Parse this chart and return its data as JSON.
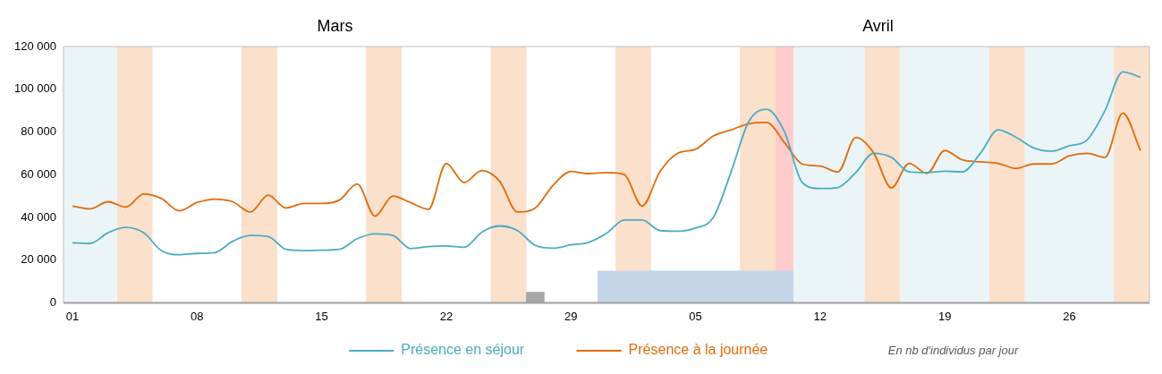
{
  "chart_data": {
    "type": "line",
    "x": [
      "--03-01",
      "--03-02",
      "--03-03",
      "--03-04",
      "--03-05",
      "--03-06",
      "--03-07",
      "--03-08",
      "--03-09",
      "--03-10",
      "--03-11",
      "--03-12",
      "--03-13",
      "--03-14",
      "--03-15",
      "--03-16",
      "--03-17",
      "--03-18",
      "--03-19",
      "--03-20",
      "--03-21",
      "--03-22",
      "--03-23",
      "--03-24",
      "--03-25",
      "--03-26",
      "--03-27",
      "--03-28",
      "--03-29",
      "--03-30",
      "--03-31",
      "--04-01",
      "--04-02",
      "--04-03",
      "--04-04",
      "--04-05",
      "--04-06",
      "--04-07",
      "--04-08",
      "--04-09",
      "--04-10",
      "--04-11",
      "--04-12",
      "--04-13",
      "--04-14",
      "--04-15",
      "--04-16",
      "--04-17",
      "--04-18",
      "--04-19",
      "--04-20",
      "--04-21",
      "--04-22",
      "--04-23",
      "--04-24",
      "--04-25",
      "--04-26",
      "--04-27",
      "--04-28",
      "--04-29",
      "--04-30"
    ],
    "xlim": [
      "--02-28T12:00",
      "--04-30T12:00"
    ],
    "xticks": [
      {
        "value": "--03-01",
        "label": "01"
      },
      {
        "value": "--03-08",
        "label": "08"
      },
      {
        "value": "--03-15",
        "label": "15"
      },
      {
        "value": "--03-22",
        "label": "22"
      },
      {
        "value": "--03-29",
        "label": "29"
      },
      {
        "value": "--04-05",
        "label": "05"
      },
      {
        "value": "--04-12",
        "label": "12"
      },
      {
        "value": "--04-19",
        "label": "19"
      },
      {
        "value": "--04-26",
        "label": "26"
      }
    ],
    "ylim": [
      0,
      120000
    ],
    "yticks": [
      {
        "value": 0,
        "label": "0"
      },
      {
        "value": 20000,
        "label": "20 000"
      },
      {
        "value": 40000,
        "label": "40 000"
      },
      {
        "value": 60000,
        "label": "60 000"
      },
      {
        "value": 80000,
        "label": "80 000"
      },
      {
        "value": 100000,
        "label": "100 000"
      },
      {
        "value": 120000,
        "label": "120 000"
      }
    ],
    "series": [
      {
        "name": "Présence en séjour",
        "color": "#4bacc6",
        "values": [
          28100,
          27800,
          32800,
          35300,
          32800,
          24400,
          22500,
          23100,
          23500,
          28800,
          31500,
          31000,
          25000,
          24400,
          24600,
          25000,
          30000,
          32300,
          31500,
          25400,
          26300,
          26600,
          26000,
          33100,
          36000,
          33800,
          26900,
          25600,
          27100,
          28300,
          32500,
          38800,
          38800,
          33800,
          33500,
          35000,
          40000,
          61300,
          85000,
          90600,
          80000,
          56300,
          53500,
          54000,
          61000,
          70000,
          68100,
          61300,
          61000,
          61600,
          61300,
          70000,
          81000,
          77500,
          72500,
          71000,
          73500,
          76300,
          90000,
          108100,
          105600
        ]
      },
      {
        "name": "Présence à la journée",
        "color": "#e36c09",
        "values": [
          45300,
          44000,
          47300,
          44800,
          50900,
          48800,
          43100,
          46900,
          48500,
          47300,
          42500,
          50400,
          44400,
          46500,
          46500,
          48100,
          55600,
          40600,
          50000,
          46900,
          43800,
          65300,
          56300,
          61900,
          56900,
          42500,
          44400,
          55000,
          61500,
          60500,
          61000,
          60000,
          45300,
          61300,
          70000,
          71900,
          78100,
          81000,
          83800,
          84400,
          75000,
          65000,
          64000,
          61300,
          77400,
          70300,
          53800,
          65300,
          60600,
          71300,
          66900,
          66000,
          65300,
          62900,
          65000,
          65000,
          68800,
          70000,
          68100,
          88800,
          71300
        ]
      },
      {
        "type": "bar",
        "color": "#a6a6a6",
        "x": [
          "--03-27"
        ],
        "values": [
          5000
        ]
      },
      {
        "type": "area",
        "color": "#c5d5e9",
        "x": [
          "--03-30T12:00",
          "--04-10T12:00"
        ],
        "values": [
          15000,
          15000
        ]
      }
    ],
    "bands": [
      {
        "axis": "x",
        "from": "--02-28T12:00",
        "to": "--03-03T12:00",
        "color": "#ebf5f8"
      },
      {
        "axis": "x",
        "from": "--03-03T12:00",
        "to": "--03-05T12:00",
        "color": "#fbe0cc"
      },
      {
        "axis": "x",
        "from": "--03-10T12:00",
        "to": "--03-12T12:00",
        "color": "#fbe0cc"
      },
      {
        "axis": "x",
        "from": "--03-17T12:00",
        "to": "--03-19T12:00",
        "color": "#fbe0cc"
      },
      {
        "axis": "x",
        "from": "--03-24T12:00",
        "to": "--03-26T12:00",
        "color": "#fbe0cc"
      },
      {
        "axis": "x",
        "from": "--03-31T12:00",
        "to": "--04-02T12:00",
        "color": "#fbe0cc"
      },
      {
        "axis": "x",
        "from": "--04-07T12:00",
        "to": "--04-09T12:00",
        "color": "#fbe0cc"
      },
      {
        "axis": "x",
        "from": "--04-09T12:00",
        "to": "--04-10T12:00",
        "color": "#ffcccc"
      },
      {
        "axis": "x",
        "from": "--04-10T12:00",
        "to": "--04-14T12:00",
        "color": "#ebf5f8"
      },
      {
        "axis": "x",
        "from": "--04-14T12:00",
        "to": "--04-16T12:00",
        "color": "#fbe0cc"
      },
      {
        "axis": "x",
        "from": "--04-16T12:00",
        "to": "--04-21T12:00",
        "color": "#ebf5f8"
      },
      {
        "axis": "x",
        "from": "--04-21T12:00",
        "to": "--04-23T12:00",
        "color": "#fbe0cc"
      },
      {
        "axis": "x",
        "from": "--04-23T12:00",
        "to": "--04-28T12:00",
        "color": "#ebf5f8"
      },
      {
        "axis": "x",
        "from": "--04-28T12:00",
        "to": "--04-30T12:00",
        "color": "#fbe0cc"
      }
    ],
    "legend": "bottom",
    "marker": "none",
    "annotations": [
      "Mars",
      "Avril",
      "En nb d'individus par jour"
    ]
  }
}
